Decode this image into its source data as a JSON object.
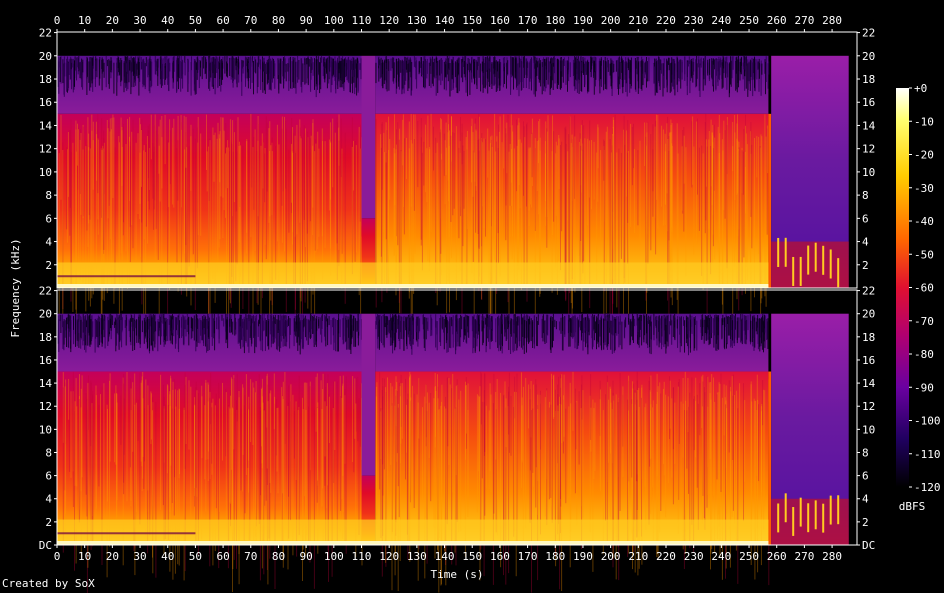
{
  "chart_data": {
    "type": "heatmap",
    "subtype": "spectrogram",
    "title": "",
    "xlabel": "Time (s)",
    "ylabel": "Frequency (kHz)",
    "xlim": [
      0,
      289
    ],
    "x_ticks": [
      0,
      10,
      20,
      30,
      40,
      50,
      60,
      70,
      80,
      90,
      100,
      110,
      120,
      130,
      140,
      150,
      160,
      170,
      180,
      190,
      200,
      210,
      220,
      230,
      240,
      250,
      260,
      270,
      280
    ],
    "channels": [
      {
        "name": "",
        "y_tick_labels": [
          "22",
          "20",
          "18",
          "16",
          "14",
          "12",
          "10",
          "8",
          "6",
          "4",
          "2"
        ],
        "y_tick_values": [
          22,
          20,
          18,
          16,
          14,
          12,
          10,
          8,
          6,
          4,
          2
        ]
      },
      {
        "name": "",
        "y_tick_labels": [
          "22",
          "20",
          "18",
          "16",
          "14",
          "12",
          "10",
          "8",
          "6",
          "4",
          "2",
          "DC"
        ],
        "y_tick_values": [
          22,
          20,
          18,
          16,
          14,
          12,
          10,
          8,
          6,
          4,
          2,
          0
        ]
      }
    ],
    "ylim": [
      0,
      22.05
    ],
    "colorbar": {
      "label": "dBFS",
      "range": [
        -120,
        0
      ],
      "tick_labels": [
        "+0",
        "-10",
        "-20",
        "-30",
        "-40",
        "-50",
        "-60",
        "-70",
        "-80",
        "-90",
        "-100",
        "-110",
        "-120"
      ],
      "tick_values": [
        0,
        -10,
        -20,
        -30,
        -40,
        -50,
        -60,
        -70,
        -80,
        -90,
        -100,
        -110,
        -120
      ]
    },
    "segments": [
      {
        "t_start": 0,
        "t_end": 110,
        "cutoff_khz": 15,
        "high_band_noise_to_khz": 20
      },
      {
        "t_start": 110,
        "t_end": 115,
        "cutoff_khz": 20
      },
      {
        "t_start": 115,
        "t_end": 257,
        "cutoff_khz": 15,
        "high_band_noise_to_khz": 20
      },
      {
        "t_start": 257,
        "t_end": 258,
        "cutoff_khz": 15
      },
      {
        "t_start": 258,
        "t_end": 286,
        "cutoff_khz": 20
      }
    ]
  },
  "credit": "Created by SoX"
}
